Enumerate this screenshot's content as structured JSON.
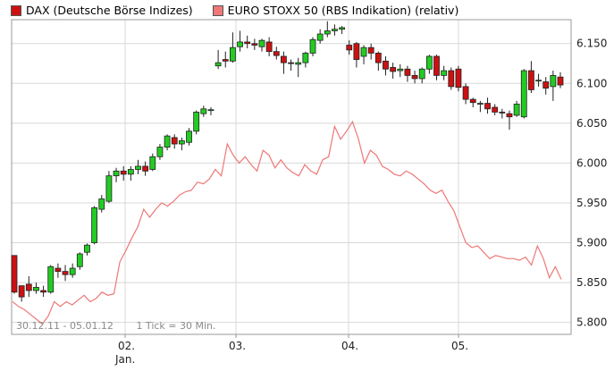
{
  "legend": {
    "series1_label": "DAX (Deutsche Börse Indizes)",
    "series2_label": "EURO STOXX 50 (RBS Indikation) (relativ)"
  },
  "info": {
    "range": "30.12.11 - 05.01.12",
    "interval": "1 Tick = 30 Min."
  },
  "colors": {
    "up": "#22cc22",
    "down": "#cc1111",
    "line": "#ee7777",
    "grid": "#d8d8d8",
    "frame": "#999999"
  },
  "chart_data": {
    "type": "candlestick",
    "y_ticks": [
      "5.800",
      "5.850",
      "5.900",
      "5.950",
      "6.000",
      "6.050",
      "6.100",
      "6.150"
    ],
    "ylim": [
      5785,
      6180
    ],
    "x_tick_labels": [
      "02.",
      "03.",
      "04.",
      "05."
    ],
    "x_sub_label": "Jan.",
    "grid": true,
    "legend_position": "top-left",
    "series": [
      {
        "name": "DAX (Deutsche Börse Indizes)",
        "kind": "candlestick",
        "candles": [
          [
            5884,
            5838,
            5874,
            5836
          ],
          [
            5846,
            5832,
            5837,
            5826
          ],
          [
            5848,
            5840,
            5858,
            5832
          ],
          [
            5840,
            5844,
            5850,
            5836
          ],
          [
            5840,
            5838,
            5846,
            5832
          ],
          [
            5838,
            5870,
            5872,
            5836
          ],
          [
            5868,
            5864,
            5874,
            5856
          ],
          [
            5864,
            5860,
            5872,
            5852
          ],
          [
            5860,
            5868,
            5874,
            5856
          ],
          [
            5870,
            5886,
            5888,
            5866
          ],
          [
            5888,
            5897,
            5899,
            5884
          ],
          [
            5900,
            5944,
            5946,
            5898
          ],
          [
            5942,
            5955,
            5960,
            5938
          ],
          [
            5952,
            5984,
            5990,
            5950
          ],
          [
            5984,
            5990,
            5994,
            5976
          ],
          [
            5990,
            5986,
            5996,
            5978
          ],
          [
            5986,
            5992,
            5996,
            5978
          ],
          [
            5992,
            5996,
            6004,
            5986
          ],
          [
            5996,
            5990,
            6002,
            5984
          ],
          [
            5992,
            6008,
            6012,
            5990
          ],
          [
            6008,
            6020,
            6024,
            6004
          ],
          [
            6020,
            6034,
            6036,
            6016
          ],
          [
            6032,
            6024,
            6036,
            6018
          ],
          [
            6024,
            6028,
            6032,
            6016
          ],
          [
            6026,
            6040,
            6044,
            6022
          ],
          [
            6040,
            6064,
            6066,
            6036
          ],
          [
            6062,
            6068,
            6072,
            6058
          ],
          [
            6066,
            6067,
            6070,
            6060
          ],
          [
            6122,
            6126,
            6142,
            6118
          ],
          [
            6130,
            6128,
            6140,
            6120
          ],
          [
            6128,
            6145,
            6164,
            6126
          ],
          [
            6146,
            6152,
            6166,
            6140
          ],
          [
            6152,
            6150,
            6160,
            6144
          ],
          [
            6150,
            6148,
            6156,
            6142
          ],
          [
            6146,
            6154,
            6156,
            6140
          ],
          [
            6152,
            6140,
            6158,
            6134
          ],
          [
            6140,
            6135,
            6146,
            6130
          ],
          [
            6134,
            6126,
            6140,
            6112
          ],
          [
            6126,
            6125,
            6130,
            6116
          ],
          [
            6124,
            6126,
            6132,
            6108
          ],
          [
            6126,
            6138,
            6140,
            6120
          ],
          [
            6138,
            6155,
            6158,
            6134
          ],
          [
            6154,
            6162,
            6168,
            6150
          ],
          [
            6162,
            6166,
            6178,
            6158
          ],
          [
            6166,
            6168,
            6174,
            6160
          ],
          [
            6168,
            6170,
            6172,
            6162
          ],
          [
            6148,
            6142,
            6154,
            6136
          ],
          [
            6150,
            6130,
            6152,
            6120
          ],
          [
            6134,
            6145,
            6148,
            6124
          ],
          [
            6145,
            6138,
            6150,
            6130
          ],
          [
            6138,
            6126,
            6140,
            6116
          ],
          [
            6128,
            6118,
            6134,
            6110
          ],
          [
            6120,
            6115,
            6126,
            6106
          ],
          [
            6116,
            6118,
            6124,
            6108
          ],
          [
            6118,
            6110,
            6122,
            6102
          ],
          [
            6110,
            6106,
            6116,
            6100
          ],
          [
            6106,
            6118,
            6120,
            6100
          ],
          [
            6118,
            6134,
            6136,
            6112
          ],
          [
            6134,
            6110,
            6136,
            6104
          ],
          [
            6110,
            6116,
            6122,
            6104
          ],
          [
            6116,
            6096,
            6120,
            6092
          ],
          [
            6118,
            6095,
            6122,
            6090
          ],
          [
            6096,
            6080,
            6100,
            6074
          ],
          [
            6080,
            6076,
            6082,
            6070
          ],
          [
            6074,
            6075,
            6078,
            6064
          ],
          [
            6075,
            6068,
            6082,
            6062
          ],
          [
            6070,
            6064,
            6074,
            6060
          ],
          [
            6064,
            6063,
            6068,
            6056
          ],
          [
            6062,
            6058,
            6066,
            6042
          ],
          [
            6060,
            6074,
            6078,
            6058
          ],
          [
            6058,
            6116,
            6118,
            6056
          ],
          [
            6116,
            6092,
            6128,
            6088
          ],
          [
            6104,
            6104,
            6112,
            6096
          ],
          [
            6102,
            6094,
            6108,
            6086
          ],
          [
            6096,
            6110,
            6116,
            6078
          ],
          [
            6108,
            6098,
            6114,
            6094
          ]
        ]
      },
      {
        "name": "EURO STOXX 50 (RBS Indikation) (relativ)",
        "kind": "line",
        "y": [
          5826,
          5820,
          5816,
          5810,
          5804,
          5798,
          5808,
          5826,
          5820,
          5826,
          5822,
          5828,
          5834,
          5826,
          5830,
          5838,
          5834,
          5836,
          5876,
          5890,
          5906,
          5920,
          5942,
          5932,
          5942,
          5950,
          5946,
          5952,
          5960,
          5964,
          5966,
          5976,
          5974,
          5980,
          5992,
          5984,
          6024,
          6010,
          6000,
          6008,
          5998,
          5990,
          6016,
          6010,
          5994,
          6004,
          5994,
          5988,
          5984,
          5998,
          5990,
          5986,
          6004,
          6008,
          6046,
          6030,
          6040,
          6052,
          6030,
          6000,
          6016,
          6010,
          5996,
          5992,
          5986,
          5984,
          5990,
          5986,
          5980,
          5974,
          5966,
          5962,
          5966,
          5952,
          5940,
          5920,
          5900,
          5894,
          5896,
          5888,
          5880,
          5884,
          5882,
          5880,
          5880,
          5878,
          5882,
          5872,
          5896,
          5880,
          5856,
          5870,
          5854
        ]
      }
    ]
  }
}
